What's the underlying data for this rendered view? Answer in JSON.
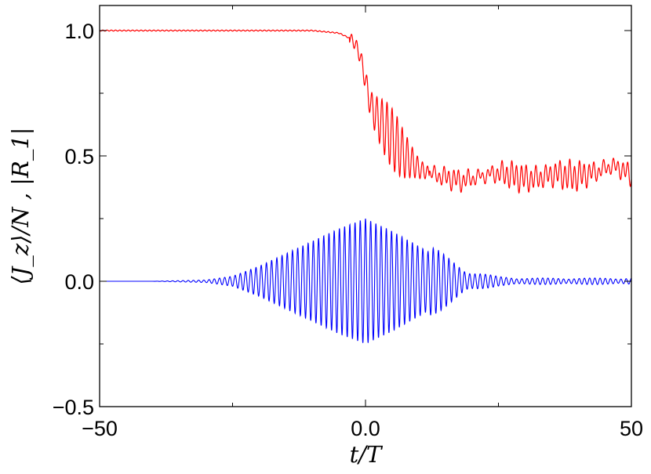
{
  "chart_data": {
    "type": "line",
    "title": "",
    "xlabel": "t/T",
    "ylabel": "⟨J_z⟩/N , |R_1|",
    "xlim": [
      -50,
      50
    ],
    "ylim": [
      -0.5,
      1.1
    ],
    "x_ticks": [
      -50,
      0,
      50
    ],
    "x_tick_labels": [
      "−50",
      "0.0",
      "50"
    ],
    "y_ticks": [
      -0.5,
      0.0,
      0.5,
      1.0
    ],
    "y_tick_labels": [
      "−0.5",
      "0.0",
      "0.5",
      "1.0"
    ],
    "grid": false,
    "legend": "none",
    "series": [
      {
        "color": "#ff0000",
        "x": [
          -50,
          -40,
          -30,
          -20,
          -10,
          -5,
          -3,
          -2,
          -1,
          0,
          1,
          2,
          3,
          4,
          5,
          6,
          7,
          8,
          9,
          10,
          12,
          14,
          16,
          18,
          20,
          22,
          24,
          26,
          28,
          30,
          32,
          34,
          36,
          38,
          40,
          42,
          44,
          46,
          48,
          50
        ],
        "values": [
          1.0,
          1.0,
          1.0,
          1.0,
          1.0,
          0.99,
          0.97,
          0.95,
          0.9,
          0.8,
          0.7,
          0.66,
          0.63,
          0.6,
          0.57,
          0.54,
          0.51,
          0.49,
          0.47,
          0.45,
          0.43,
          0.42,
          0.41,
          0.4,
          0.41,
          0.42,
          0.43,
          0.43,
          0.42,
          0.41,
          0.41,
          0.42,
          0.43,
          0.42,
          0.42,
          0.43,
          0.44,
          0.46,
          0.45,
          0.42
        ]
      },
      {
        "color": "#0000ff",
        "x": [
          -50,
          -40,
          -30,
          -25,
          -20,
          -15,
          -10,
          -5,
          0,
          5,
          10,
          15,
          20,
          25,
          30,
          40,
          50
        ],
        "values": [
          0.0,
          0.0,
          0.005,
          0.02,
          0.06,
          0.11,
          0.16,
          0.21,
          0.25,
          0.2,
          0.14,
          0.08,
          0.03,
          0.015,
          0.01,
          0.01,
          0.01
        ]
      }
    ]
  }
}
